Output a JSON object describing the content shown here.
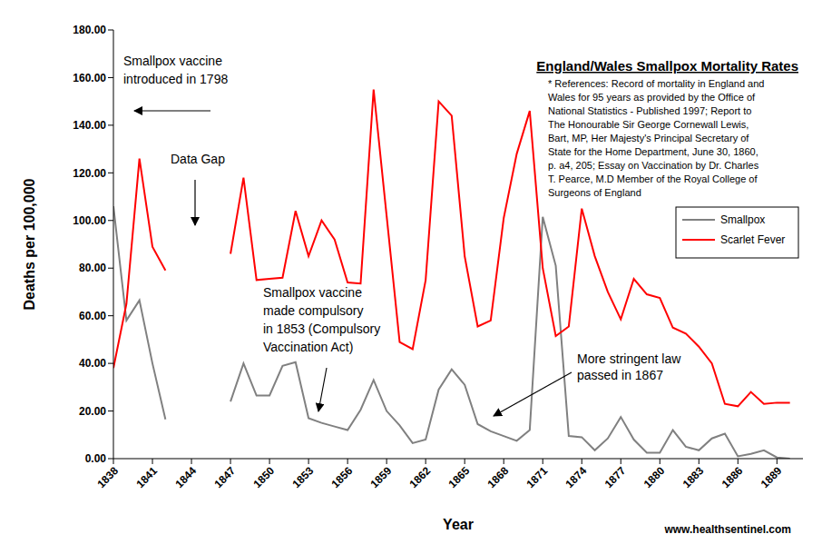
{
  "chart_data": {
    "type": "line",
    "title": "England/Wales Smallpox Mortality Rates",
    "references": [
      "* References: Record of mortality in England and",
      "Wales for 95 years as provided by the Office of",
      "National Statistics - Published 1997; Report to",
      "The Honourable Sir George Cornewall Lewis,",
      "Bart, MP, Her Majesty's Principal Secretary of",
      "State for the Home Department, June 30, 1860,",
      "p. a4, 205; Essay on Vaccination by Dr. Charles",
      "T. Pearce, M.D Member of the Royal College of",
      "Surgeons of England"
    ],
    "x_label": "Year",
    "y_label": "Deaths per 100,000",
    "source": "www.healthsentinel.com",
    "annotations": [
      {
        "text": [
          "Smallpox vaccine",
          "introduced in 1798"
        ]
      },
      {
        "text": [
          "Data Gap"
        ]
      },
      {
        "text": [
          "Smallpox vaccine",
          "made compulsory",
          "in 1853 (Compulsory",
          "Vaccination Act)"
        ]
      },
      {
        "text": [
          "More stringent law",
          "passed in 1867"
        ]
      }
    ],
    "x": [
      1838,
      1839,
      1840,
      1841,
      1842,
      1843,
      1844,
      1845,
      1846,
      1847,
      1848,
      1849,
      1850,
      1851,
      1852,
      1853,
      1854,
      1855,
      1856,
      1857,
      1858,
      1859,
      1860,
      1861,
      1862,
      1863,
      1864,
      1865,
      1866,
      1867,
      1868,
      1869,
      1870,
      1871,
      1872,
      1873,
      1874,
      1875,
      1876,
      1877,
      1878,
      1879,
      1880,
      1881,
      1882,
      1883,
      1884,
      1885,
      1886,
      1887,
      1888,
      1889,
      1890
    ],
    "series": [
      {
        "name": "Smallpox",
        "color": "#808080",
        "values": [
          106,
          58,
          66.5,
          40,
          16.5,
          null,
          null,
          null,
          null,
          24,
          40,
          26.5,
          26.5,
          39,
          40.5,
          17,
          15,
          13.5,
          12,
          20.5,
          33,
          20,
          14,
          6.5,
          8,
          29,
          37.5,
          31,
          14.5,
          11.5,
          9.5,
          7.5,
          12,
          101.5,
          81,
          9.5,
          9,
          3.5,
          8.5,
          17.5,
          8,
          2.5,
          2.5,
          12,
          5,
          3.5,
          8.5,
          10.5,
          1,
          2,
          3.5,
          0.5,
          0
        ]
      },
      {
        "name": "Scarlet Fever",
        "color": "#ff0000",
        "values": [
          38,
          65,
          126,
          89,
          79,
          null,
          null,
          null,
          null,
          86,
          118,
          75,
          75.5,
          76,
          104,
          85,
          100,
          92,
          74,
          73.5,
          155,
          102,
          49,
          46,
          75,
          150,
          144,
          85,
          55.5,
          58,
          101,
          128,
          146,
          80,
          51.5,
          55.5,
          105,
          85,
          70,
          58.5,
          75.5,
          69,
          67.5,
          55,
          52.5,
          47,
          40,
          23,
          22,
          28,
          23,
          23.5,
          23.5
        ]
      }
    ],
    "xlim": [
      1838,
      1891
    ],
    "xticks": [
      1838,
      1841,
      1844,
      1847,
      1850,
      1853,
      1856,
      1859,
      1862,
      1865,
      1868,
      1871,
      1874,
      1877,
      1880,
      1883,
      1886,
      1889
    ],
    "ylim": [
      0,
      180
    ],
    "yticks": [
      {
        "value": 0,
        "label": "0.00"
      },
      {
        "value": 20,
        "label": "20.00"
      },
      {
        "value": 40,
        "label": "40.00"
      },
      {
        "value": 60,
        "label": "60.00"
      },
      {
        "value": 80,
        "label": "80.00"
      },
      {
        "value": 100,
        "label": "100.00"
      },
      {
        "value": 120,
        "label": "120.00"
      },
      {
        "value": 140,
        "label": "140.00"
      },
      {
        "value": 160,
        "label": "160.00"
      },
      {
        "value": 180,
        "label": "180.00"
      }
    ],
    "grid": false,
    "legend": "right"
  }
}
